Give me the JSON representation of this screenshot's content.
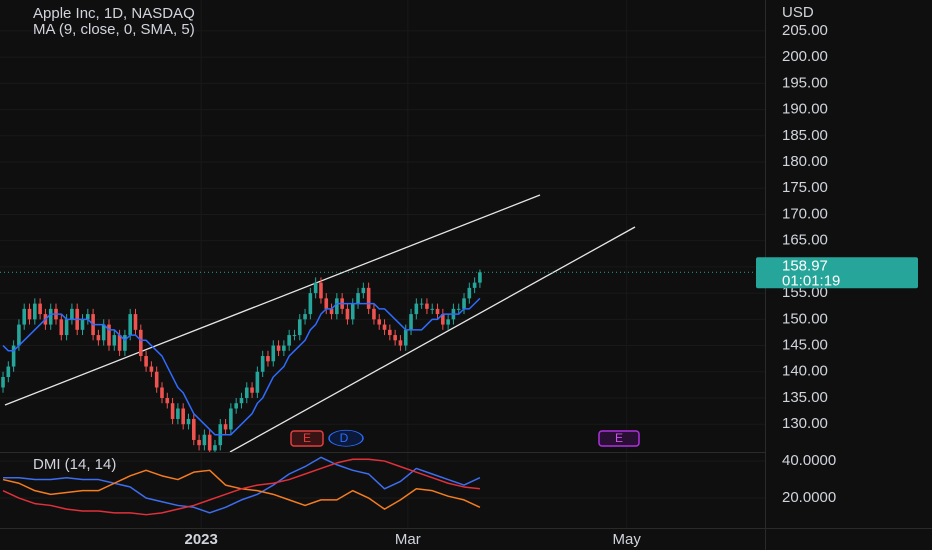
{
  "chart_data": [
    {
      "type": "candlestick",
      "title": "Apple Inc, 1D, NASDAQ",
      "currency": "USD",
      "x": [
        0,
        1,
        2,
        3,
        4,
        5,
        6,
        7,
        8,
        9,
        10,
        11,
        12,
        13,
        14,
        15,
        16,
        17,
        18,
        19,
        20,
        21,
        22,
        23,
        24,
        25,
        26,
        27,
        28,
        29,
        30,
        31,
        32,
        33,
        34,
        35,
        36,
        37,
        38,
        39,
        40,
        41,
        42,
        43,
        44,
        45,
        46,
        47,
        48,
        49,
        50,
        51,
        52,
        53,
        54,
        55,
        56,
        57,
        58,
        59,
        60,
        61,
        62,
        63,
        64,
        65,
        66,
        67,
        68,
        69,
        70,
        71,
        72,
        73,
        74,
        75,
        76,
        77,
        78,
        79,
        80,
        81,
        82,
        83,
        84,
        85,
        86,
        87,
        88,
        89,
        90
      ],
      "open": [
        137,
        139,
        141,
        145,
        149,
        152,
        150,
        153,
        151,
        149,
        152,
        150,
        147,
        150,
        152,
        148,
        150,
        151,
        147,
        146,
        149,
        145,
        147,
        144,
        147,
        151,
        148,
        143,
        141,
        140,
        137,
        135,
        134,
        131,
        133,
        130,
        131,
        127,
        126,
        128,
        125,
        126,
        130,
        129,
        133,
        134,
        135,
        137,
        136,
        140,
        143,
        142,
        145,
        144,
        145,
        147,
        147,
        150,
        151,
        155,
        157,
        154,
        152,
        151,
        154,
        152,
        150,
        153,
        155,
        156,
        152,
        150,
        149,
        148,
        147,
        146,
        145,
        148,
        151,
        153,
        153,
        152,
        152,
        151,
        149,
        150,
        152,
        152,
        154,
        156,
        157
      ],
      "high": [
        140,
        142,
        146,
        150,
        153,
        153,
        154,
        154,
        152,
        153,
        153,
        151,
        151,
        153,
        153,
        151,
        152,
        152,
        148,
        150,
        150,
        148,
        148,
        148,
        152,
        152,
        149,
        144,
        142,
        141,
        138,
        136,
        135,
        134,
        134,
        132,
        132,
        128,
        129,
        129,
        127,
        131,
        131,
        134,
        135,
        136,
        138,
        138,
        141,
        144,
        144,
        146,
        146,
        146,
        148,
        148,
        151,
        152,
        156,
        158,
        158,
        155,
        153,
        155,
        155,
        153,
        154,
        156,
        157,
        157,
        153,
        151,
        150,
        149,
        148,
        147,
        149,
        152,
        154,
        154,
        154,
        153,
        153,
        152,
        151,
        153,
        153,
        155,
        157,
        158,
        159.5
      ],
      "low": [
        136,
        138,
        140,
        144,
        148,
        149,
        149,
        150,
        148,
        148,
        149,
        146,
        146,
        149,
        147,
        147,
        149,
        146,
        145,
        145,
        144,
        144,
        143,
        143,
        146,
        147,
        142,
        140,
        139,
        136,
        134,
        133,
        130,
        130,
        129,
        129,
        126,
        125,
        125,
        124,
        124,
        125,
        128,
        128,
        132,
        133,
        134,
        135,
        135,
        139,
        141,
        141,
        143,
        143,
        144,
        146,
        146,
        149,
        150,
        154,
        153,
        151,
        150,
        150,
        151,
        149,
        149,
        152,
        154,
        151,
        149,
        148,
        147,
        146,
        145,
        144,
        144,
        147,
        150,
        152,
        151,
        151,
        150,
        148,
        148,
        149,
        151,
        151,
        153,
        155,
        156
      ],
      "close": [
        139,
        141,
        145,
        149,
        152,
        150,
        153,
        151,
        149,
        152,
        150,
        147,
        150,
        152,
        148,
        150,
        151,
        147,
        146,
        149,
        145,
        147,
        144,
        147,
        151,
        148,
        143,
        141,
        140,
        137,
        135,
        134,
        131,
        133,
        130,
        131,
        127,
        126,
        128,
        125,
        126,
        130,
        129,
        133,
        134,
        135,
        137,
        136,
        140,
        143,
        142,
        145,
        144,
        145,
        147,
        147,
        150,
        151,
        155,
        157,
        154,
        152,
        151,
        154,
        152,
        150,
        153,
        155,
        156,
        152,
        150,
        149,
        148,
        147,
        146,
        145,
        148,
        151,
        153,
        153,
        152,
        152,
        151,
        149,
        150,
        152,
        152,
        154,
        156,
        157,
        158.97
      ],
      "up_color": "#26a69a",
      "down_color": "#ef5350",
      "series": [
        {
          "name": "MA (9, close, 0, SMA, 5)",
          "color": "#2f6bff",
          "values": [
            145,
            144,
            144,
            145,
            146,
            147,
            148,
            149,
            150,
            151,
            151,
            151,
            150,
            150,
            150,
            150,
            150,
            149,
            149,
            149,
            148,
            148,
            147,
            146,
            147,
            147,
            146,
            146,
            145,
            144,
            143,
            141,
            139,
            137,
            136,
            134,
            132,
            131,
            130,
            129,
            128,
            128,
            128,
            128,
            129,
            130,
            131,
            132,
            134,
            135,
            137,
            139,
            140,
            141,
            143,
            144,
            145,
            146,
            148,
            149,
            151,
            152,
            152,
            153,
            153,
            153,
            153,
            153,
            153,
            153,
            153,
            152,
            152,
            151,
            150,
            149,
            148,
            148,
            148,
            148,
            149,
            150,
            150,
            151,
            151,
            151,
            151,
            152,
            152,
            153,
            154
          ]
        }
      ],
      "last_price": 158.97,
      "countdown": "01:01:19",
      "events": [
        "E",
        "D",
        "E"
      ],
      "xlim": [
        -0.57,
        143.8
      ],
      "xticks": [
        {
          "value": 37.4,
          "label": "2023"
        },
        {
          "value": 76.4,
          "label": "Mar"
        },
        {
          "value": 117.7,
          "label": "May"
        }
      ],
      "ylim": [
        124.7,
        210.9
      ],
      "yticks": [
        {
          "value": 130,
          "label": "130.00"
        },
        {
          "value": 135,
          "label": "135.00"
        },
        {
          "value": 140,
          "label": "140.00"
        },
        {
          "value": 145,
          "label": "145.00"
        },
        {
          "value": 150,
          "label": "150.00"
        },
        {
          "value": 155,
          "label": "155.00"
        },
        {
          "value": 160,
          "label": "160.00"
        },
        {
          "value": 165,
          "label": "165.00"
        },
        {
          "value": 170,
          "label": "170.00"
        },
        {
          "value": 175,
          "label": "175.00"
        },
        {
          "value": 180,
          "label": "180.00"
        },
        {
          "value": 185,
          "label": "185.00"
        },
        {
          "value": 190,
          "label": "190.00"
        },
        {
          "value": 195,
          "label": "195.00"
        },
        {
          "value": 200,
          "label": "200.00"
        },
        {
          "value": 205,
          "label": "205.00"
        }
      ],
      "grid": true
    },
    {
      "type": "line",
      "title": "DMI (14, 14)",
      "x": [
        0,
        3,
        6,
        9,
        12,
        15,
        18,
        21,
        24,
        27,
        30,
        33,
        36,
        39,
        42,
        45,
        48,
        51,
        54,
        57,
        60,
        63,
        66,
        69,
        72,
        75,
        78,
        81,
        84,
        87,
        90
      ],
      "series": [
        {
          "color": "#3d6ef0",
          "values": [
            31,
            31,
            30,
            30,
            31,
            30,
            30,
            28,
            26,
            20,
            18,
            16,
            15,
            12,
            15,
            19,
            22,
            27,
            33,
            37,
            42,
            38,
            35,
            33,
            25,
            29,
            36,
            33,
            30,
            27,
            31
          ]
        },
        {
          "color": "#f57c20",
          "values": [
            30,
            28,
            24,
            22,
            23,
            24,
            24,
            28,
            32,
            35,
            32,
            30,
            34,
            35,
            27,
            25,
            24,
            22,
            19,
            16,
            19,
            19,
            24,
            20,
            14,
            19,
            25,
            24,
            21,
            19,
            15
          ]
        },
        {
          "color": "#e0303a",
          "values": [
            24,
            20,
            17,
            16,
            14,
            13,
            13,
            12,
            12,
            11,
            12,
            14,
            16,
            19,
            22,
            25,
            27,
            28,
            30,
            33,
            36,
            39,
            41,
            41,
            40,
            37,
            34,
            31,
            28,
            26,
            25
          ]
        }
      ],
      "xlim": [
        -0.57,
        143.8
      ],
      "ylim": [
        3.8,
        44.9
      ],
      "yticks": [
        {
          "value": 40,
          "label": "40.0000"
        },
        {
          "value": 20,
          "label": "20.0000"
        }
      ]
    }
  ]
}
